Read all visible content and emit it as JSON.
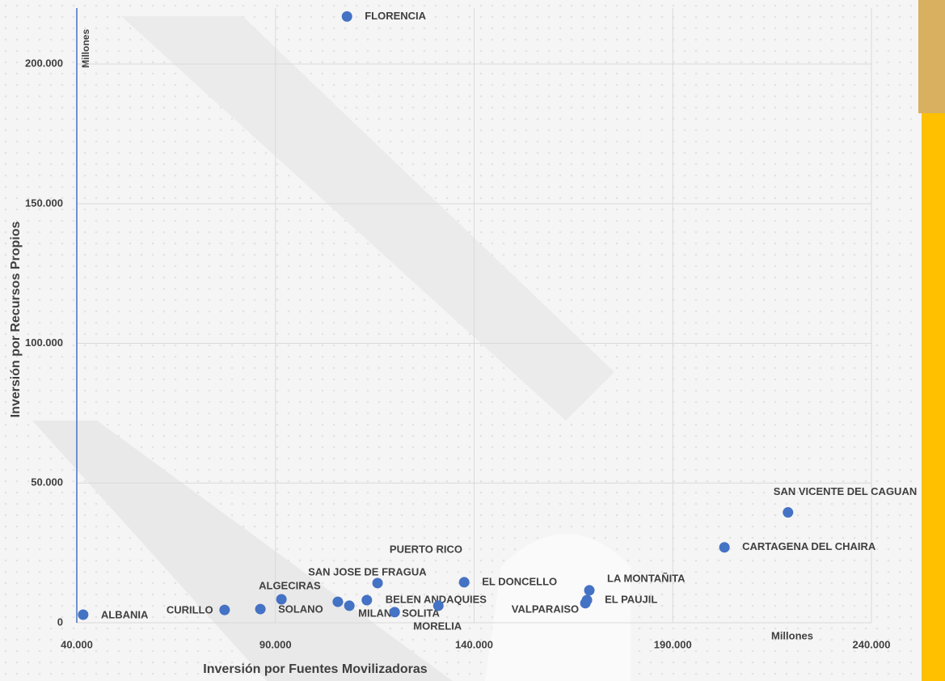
{
  "chart_data": {
    "type": "scatter",
    "x_label": "Inversión por Fuentes Movilizadoras",
    "y_label": "Inversión por Recursos Propios",
    "x_unit": "Millones",
    "y_unit": "Millones",
    "color": "#4472c4",
    "xlim": [
      40000,
      240000
    ],
    "ylim": [
      0,
      220000
    ],
    "xticks": [
      {
        "value": 40000,
        "label": "40.000"
      },
      {
        "value": 90000,
        "label": "90.000"
      },
      {
        "value": 140000,
        "label": "140.000"
      },
      {
        "value": 190000,
        "label": "190.000"
      },
      {
        "value": 240000,
        "label": "240.000"
      }
    ],
    "yticks": [
      0,
      {
        "value": 50000,
        "label": "50.000"
      },
      {
        "value": 100000,
        "label": "100.000"
      },
      {
        "value": 150000,
        "label": "150.000"
      },
      {
        "value": 200000,
        "label": "200.000"
      }
    ],
    "grid": true,
    "points": [
      {
        "name": "FLORENCIA",
        "x": 108000,
        "y": 217000
      },
      {
        "name": "SAN VICENTE DEL CAGUAN",
        "x": 219000,
        "y": 39500
      },
      {
        "name": "CARTAGENA DEL CHAIRA",
        "x": 203000,
        "y": 27000
      },
      {
        "name": "LA MONTAÑITA",
        "x": 169000,
        "y": 11600
      },
      {
        "name": "EL PAUJIL",
        "x": 168400,
        "y": 8100
      },
      {
        "name": "VALPARAISO",
        "x": 168000,
        "y": 7000
      },
      {
        "name": "EL DONCELLO",
        "x": 137500,
        "y": 14500
      },
      {
        "name": "PUERTO RICO",
        "x": 105700,
        "y": 7500
      },
      {
        "name": "SAN JOSE DE FRAGUA",
        "x": 115700,
        "y": 14200
      },
      {
        "name": "ALGECIRAS",
        "x": 91500,
        "y": 8400
      },
      {
        "name": "BELEN ANDAQUIES",
        "x": 113000,
        "y": 8100
      },
      {
        "name": "MILAN",
        "x": 108600,
        "y": 6100
      },
      {
        "name": "SOLITA",
        "x": 120000,
        "y": 3800
      },
      {
        "name": "MORELIA",
        "x": 131000,
        "y": 6100
      },
      {
        "name": "SOLANO",
        "x": 86200,
        "y": 4900
      },
      {
        "name": "CURILLO",
        "x": 77200,
        "y": 4600
      },
      {
        "name": "ALBANIA",
        "x": 41600,
        "y": 2900
      }
    ]
  }
}
